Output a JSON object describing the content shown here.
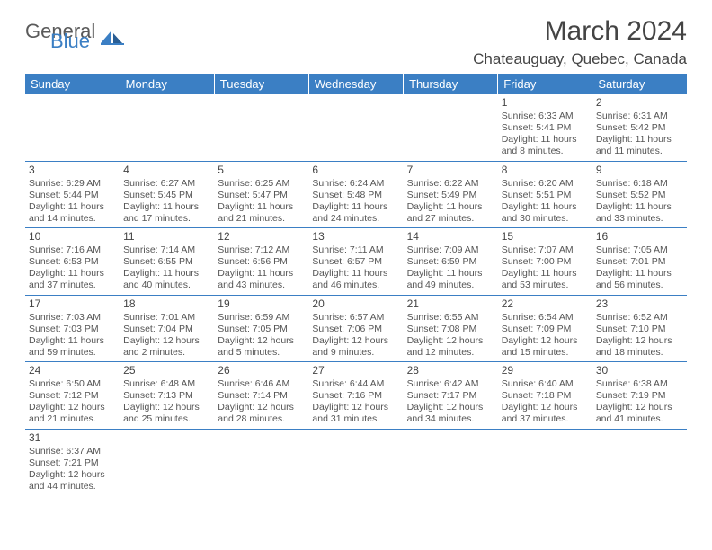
{
  "logo": {
    "part1": "General",
    "part2": "Blue"
  },
  "title": "March 2024",
  "location": "Chateauguay, Quebec, Canada",
  "colors": {
    "header_bg": "#3b7fc4",
    "header_fg": "#ffffff",
    "text": "#555555",
    "border": "#3b7fc4"
  },
  "weekdays": [
    "Sunday",
    "Monday",
    "Tuesday",
    "Wednesday",
    "Thursday",
    "Friday",
    "Saturday"
  ],
  "grid": [
    [
      null,
      null,
      null,
      null,
      null,
      {
        "n": "1",
        "sr": "6:33 AM",
        "ss": "5:41 PM",
        "dl": "11 hours and 8 minutes."
      },
      {
        "n": "2",
        "sr": "6:31 AM",
        "ss": "5:42 PM",
        "dl": "11 hours and 11 minutes."
      }
    ],
    [
      {
        "n": "3",
        "sr": "6:29 AM",
        "ss": "5:44 PM",
        "dl": "11 hours and 14 minutes."
      },
      {
        "n": "4",
        "sr": "6:27 AM",
        "ss": "5:45 PM",
        "dl": "11 hours and 17 minutes."
      },
      {
        "n": "5",
        "sr": "6:25 AM",
        "ss": "5:47 PM",
        "dl": "11 hours and 21 minutes."
      },
      {
        "n": "6",
        "sr": "6:24 AM",
        "ss": "5:48 PM",
        "dl": "11 hours and 24 minutes."
      },
      {
        "n": "7",
        "sr": "6:22 AM",
        "ss": "5:49 PM",
        "dl": "11 hours and 27 minutes."
      },
      {
        "n": "8",
        "sr": "6:20 AM",
        "ss": "5:51 PM",
        "dl": "11 hours and 30 minutes."
      },
      {
        "n": "9",
        "sr": "6:18 AM",
        "ss": "5:52 PM",
        "dl": "11 hours and 33 minutes."
      }
    ],
    [
      {
        "n": "10",
        "sr": "7:16 AM",
        "ss": "6:53 PM",
        "dl": "11 hours and 37 minutes."
      },
      {
        "n": "11",
        "sr": "7:14 AM",
        "ss": "6:55 PM",
        "dl": "11 hours and 40 minutes."
      },
      {
        "n": "12",
        "sr": "7:12 AM",
        "ss": "6:56 PM",
        "dl": "11 hours and 43 minutes."
      },
      {
        "n": "13",
        "sr": "7:11 AM",
        "ss": "6:57 PM",
        "dl": "11 hours and 46 minutes."
      },
      {
        "n": "14",
        "sr": "7:09 AM",
        "ss": "6:59 PM",
        "dl": "11 hours and 49 minutes."
      },
      {
        "n": "15",
        "sr": "7:07 AM",
        "ss": "7:00 PM",
        "dl": "11 hours and 53 minutes."
      },
      {
        "n": "16",
        "sr": "7:05 AM",
        "ss": "7:01 PM",
        "dl": "11 hours and 56 minutes."
      }
    ],
    [
      {
        "n": "17",
        "sr": "7:03 AM",
        "ss": "7:03 PM",
        "dl": "11 hours and 59 minutes."
      },
      {
        "n": "18",
        "sr": "7:01 AM",
        "ss": "7:04 PM",
        "dl": "12 hours and 2 minutes."
      },
      {
        "n": "19",
        "sr": "6:59 AM",
        "ss": "7:05 PM",
        "dl": "12 hours and 5 minutes."
      },
      {
        "n": "20",
        "sr": "6:57 AM",
        "ss": "7:06 PM",
        "dl": "12 hours and 9 minutes."
      },
      {
        "n": "21",
        "sr": "6:55 AM",
        "ss": "7:08 PM",
        "dl": "12 hours and 12 minutes."
      },
      {
        "n": "22",
        "sr": "6:54 AM",
        "ss": "7:09 PM",
        "dl": "12 hours and 15 minutes."
      },
      {
        "n": "23",
        "sr": "6:52 AM",
        "ss": "7:10 PM",
        "dl": "12 hours and 18 minutes."
      }
    ],
    [
      {
        "n": "24",
        "sr": "6:50 AM",
        "ss": "7:12 PM",
        "dl": "12 hours and 21 minutes."
      },
      {
        "n": "25",
        "sr": "6:48 AM",
        "ss": "7:13 PM",
        "dl": "12 hours and 25 minutes."
      },
      {
        "n": "26",
        "sr": "6:46 AM",
        "ss": "7:14 PM",
        "dl": "12 hours and 28 minutes."
      },
      {
        "n": "27",
        "sr": "6:44 AM",
        "ss": "7:16 PM",
        "dl": "12 hours and 31 minutes."
      },
      {
        "n": "28",
        "sr": "6:42 AM",
        "ss": "7:17 PM",
        "dl": "12 hours and 34 minutes."
      },
      {
        "n": "29",
        "sr": "6:40 AM",
        "ss": "7:18 PM",
        "dl": "12 hours and 37 minutes."
      },
      {
        "n": "30",
        "sr": "6:38 AM",
        "ss": "7:19 PM",
        "dl": "12 hours and 41 minutes."
      }
    ],
    [
      {
        "n": "31",
        "sr": "6:37 AM",
        "ss": "7:21 PM",
        "dl": "12 hours and 44 minutes."
      },
      null,
      null,
      null,
      null,
      null,
      null
    ]
  ],
  "labels": {
    "sunrise": "Sunrise: ",
    "sunset": "Sunset: ",
    "daylight": "Daylight: "
  }
}
